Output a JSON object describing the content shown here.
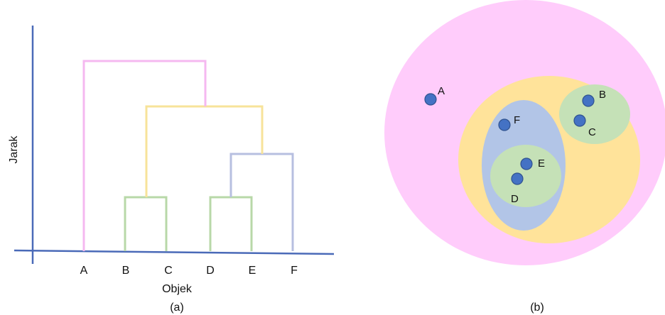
{
  "dendrogram": {
    "y_axis_label": "Jarak",
    "x_axis_label": "Objek",
    "caption": "(a)",
    "leaves": [
      "A",
      "B",
      "C",
      "D",
      "E",
      "F"
    ]
  },
  "cluster_diagram": {
    "caption": "(b)",
    "points": [
      {
        "id": "A",
        "label": "A"
      },
      {
        "id": "F",
        "label": "F"
      },
      {
        "id": "E",
        "label": "E"
      },
      {
        "id": "D",
        "label": "D"
      },
      {
        "id": "B",
        "label": "B"
      },
      {
        "id": "C",
        "label": "C"
      }
    ]
  },
  "colors": {
    "axis": "#4a6ab8",
    "pink_link": "#f5b8f0",
    "yellow_link": "#f7e39a",
    "purple_link": "#b7bfe0",
    "green_link": "#b8d8a8",
    "outer_cluster": "#ffccfb",
    "yellow_cluster": "#ffe39a",
    "blue_cluster": "#b2c5e7",
    "green_cluster": "#c5e1b7",
    "point_fill": "#4472c4",
    "point_stroke": "#2f528f"
  }
}
